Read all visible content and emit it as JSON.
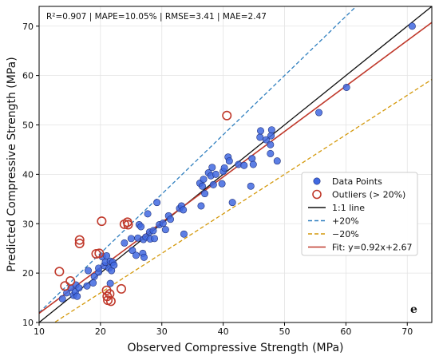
{
  "chart_data": {
    "type": "scatter",
    "title": "",
    "metrics_text": "R²=0.907 | MAPE=10.05% | RMSE=3.41 | MAE=2.47",
    "panel_label": "e",
    "xlabel": "Observed Compressive Strength (MPa)",
    "ylabel": "Predicted Compressive Strength (MPa)",
    "xlim": [
      10,
      74
    ],
    "ylim": [
      10,
      74
    ],
    "xticks": [
      10,
      20,
      30,
      40,
      50,
      60,
      70
    ],
    "yticks": [
      10,
      20,
      30,
      40,
      50,
      60,
      70
    ],
    "grid": true,
    "legend_position": "center-right",
    "series": [
      {
        "name": "Data Points",
        "kind": "points",
        "color": "#4169e1",
        "points": [
          [
            13.8,
            14.8
          ],
          [
            14.5,
            16.0
          ],
          [
            15.2,
            17.0
          ],
          [
            15.6,
            15.5
          ],
          [
            15.9,
            16.2
          ],
          [
            16.2,
            15.3
          ],
          [
            16.0,
            17.6
          ],
          [
            16.5,
            17.0
          ],
          [
            17.8,
            17.4
          ],
          [
            18.0,
            20.5
          ],
          [
            18.8,
            18.0
          ],
          [
            19.0,
            19.3
          ],
          [
            19.7,
            20.2
          ],
          [
            19.7,
            21.0
          ],
          [
            20.3,
            23.3
          ],
          [
            20.6,
            21.5
          ],
          [
            20.8,
            22.2
          ],
          [
            21.0,
            23.5
          ],
          [
            21.4,
            21.0
          ],
          [
            21.6,
            22.4
          ],
          [
            21.8,
            20.5
          ],
          [
            21.6,
            17.9
          ],
          [
            22.0,
            22.2
          ],
          [
            22.2,
            21.6
          ],
          [
            23.9,
            26.1
          ],
          [
            25.0,
            27.0
          ],
          [
            25.2,
            24.6
          ],
          [
            25.8,
            23.6
          ],
          [
            26.1,
            27.1
          ],
          [
            26.3,
            29.8
          ],
          [
            26.6,
            29.4
          ],
          [
            26.9,
            24.0
          ],
          [
            27.0,
            26.8
          ],
          [
            27.1,
            23.2
          ],
          [
            27.4,
            27.3
          ],
          [
            27.7,
            32.0
          ],
          [
            28.0,
            28.3
          ],
          [
            28.1,
            26.9
          ],
          [
            28.6,
            28.6
          ],
          [
            28.8,
            27.0
          ],
          [
            29.2,
            34.3
          ],
          [
            29.6,
            29.8
          ],
          [
            30.2,
            30.1
          ],
          [
            30.6,
            28.8
          ],
          [
            31.1,
            31.6
          ],
          [
            31.4,
            30.9
          ],
          [
            32.9,
            33.1
          ],
          [
            33.2,
            33.6
          ],
          [
            33.5,
            32.8
          ],
          [
            33.6,
            27.9
          ],
          [
            36.2,
            38.2
          ],
          [
            36.4,
            33.6
          ],
          [
            36.6,
            37.6
          ],
          [
            36.8,
            39.0
          ],
          [
            37.0,
            36.1
          ],
          [
            37.6,
            40.3
          ],
          [
            38.0,
            39.7
          ],
          [
            38.2,
            41.4
          ],
          [
            38.4,
            37.9
          ],
          [
            38.8,
            40.0
          ],
          [
            39.8,
            38.1
          ],
          [
            40.0,
            40.6
          ],
          [
            40.2,
            41.3
          ],
          [
            40.8,
            43.5
          ],
          [
            41.0,
            42.7
          ],
          [
            41.5,
            34.3
          ],
          [
            42.5,
            42.0
          ],
          [
            43.4,
            41.8
          ],
          [
            44.5,
            37.6
          ],
          [
            44.7,
            43.2
          ],
          [
            44.9,
            42.0
          ],
          [
            46.0,
            47.5
          ],
          [
            46.1,
            48.8
          ],
          [
            47.0,
            47.0
          ],
          [
            47.7,
            44.2
          ],
          [
            47.7,
            46.0
          ],
          [
            47.8,
            47.8
          ],
          [
            47.9,
            49.0
          ],
          [
            48.8,
            42.7
          ],
          [
            55.6,
            52.5
          ],
          [
            60.1,
            57.6
          ],
          [
            70.8,
            70.0
          ]
        ]
      },
      {
        "name": "Outliers (> 20%)",
        "kind": "outliers",
        "color": "#c0392b",
        "points": [
          [
            13.3,
            20.3
          ],
          [
            14.2,
            17.4
          ],
          [
            15.1,
            18.4
          ],
          [
            16.6,
            26.0
          ],
          [
            16.6,
            26.7
          ],
          [
            19.3,
            23.9
          ],
          [
            19.8,
            24.0
          ],
          [
            20.2,
            30.5
          ],
          [
            21.0,
            16.5
          ],
          [
            21.1,
            15.3
          ],
          [
            21.2,
            14.5
          ],
          [
            21.5,
            15.8
          ],
          [
            21.7,
            14.3
          ],
          [
            23.4,
            16.8
          ],
          [
            23.9,
            29.9
          ],
          [
            24.4,
            30.3
          ],
          [
            24.5,
            29.8
          ],
          [
            40.6,
            51.9
          ]
        ]
      },
      {
        "name": "1:1 line",
        "kind": "line",
        "color": "#111111",
        "dash": "",
        "slope": 1.0,
        "intercept": 0
      },
      {
        "name": "+20%",
        "kind": "line",
        "color": "#2f7fbf",
        "dash": "5,3",
        "slope": 1.2,
        "intercept": 0
      },
      {
        "name": "−20%",
        "kind": "line",
        "color": "#d4990c",
        "dash": "5,3",
        "slope": 0.8,
        "intercept": 0
      },
      {
        "name": "Fit: y=0.92x+2.67",
        "kind": "line",
        "color": "#c0392b",
        "dash": "",
        "slope": 0.92,
        "intercept": 2.67
      }
    ]
  }
}
